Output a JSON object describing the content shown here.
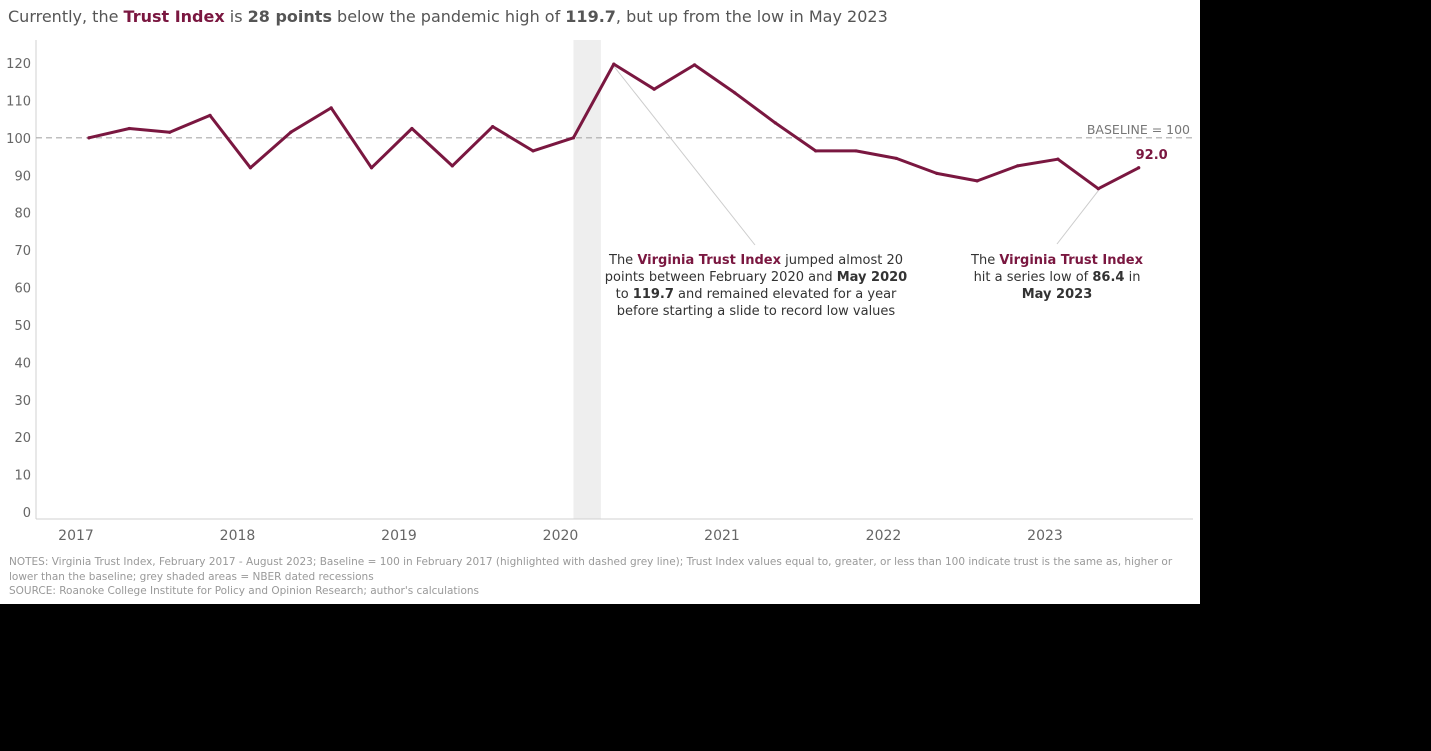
{
  "subtitle": {
    "t1": "Currently, the ",
    "t2": "Trust Index",
    "t3": " is ",
    "t4": "28 points",
    "t5": " below the pandemic high of ",
    "t6": "119.7",
    "t7": ", but up from the low in May 2023"
  },
  "chart_data": {
    "type": "line",
    "title": "Currently, the Trust Index is 28 points below the pandemic high of 119.7, but up from the low in May 2023",
    "xlabel": "",
    "ylabel": "",
    "ylim": [
      0,
      120
    ],
    "yticks": [
      0,
      10,
      20,
      30,
      40,
      50,
      60,
      70,
      80,
      90,
      100,
      110,
      120
    ],
    "xlim": [
      2017.0,
      2023.95
    ],
    "xticks": [
      {
        "label": "2017",
        "x": 2017.0
      },
      {
        "label": "2018",
        "x": 2018.0
      },
      {
        "label": "2019",
        "x": 2019.0
      },
      {
        "label": "2020",
        "x": 2020.0
      },
      {
        "label": "2021",
        "x": 2021.0
      },
      {
        "label": "2022",
        "x": 2022.0
      },
      {
        "label": "2023",
        "x": 2023.0
      }
    ],
    "baseline": {
      "value": 100,
      "label": "BASELINE = 100"
    },
    "recession": {
      "x0": 2020.08,
      "x1": 2020.25
    },
    "color": "#7a1740",
    "series": [
      {
        "name": "Virginia Trust Index",
        "x": [
          2017.08,
          2017.33,
          2017.58,
          2017.83,
          2018.08,
          2018.33,
          2018.58,
          2018.83,
          2019.08,
          2019.33,
          2019.58,
          2019.83,
          2020.08,
          2020.33,
          2020.58,
          2020.83,
          2021.08,
          2021.33,
          2021.58,
          2021.83,
          2022.08,
          2022.33,
          2022.58,
          2022.83,
          2023.08,
          2023.33,
          2023.58
        ],
        "values": [
          100.0,
          102.5,
          101.5,
          106.0,
          92.0,
          101.5,
          108.0,
          92.0,
          102.5,
          92.5,
          103.0,
          96.5,
          100.0,
          119.7,
          113.0,
          119.5,
          112.0,
          104.0,
          96.5,
          96.5,
          94.5,
          90.5,
          88.5,
          92.5,
          94.3,
          86.4,
          92.0
        ]
      }
    ],
    "end_label": "92.0",
    "annotations": [
      {
        "lines": [
          [
            {
              "t": "The "
            },
            {
              "t": "Virginia Trust Index",
              "s": "em"
            },
            {
              "t": " jumped almost 20"
            }
          ],
          [
            {
              "t": "points between February 2020 and "
            },
            {
              "t": "May 2020",
              "s": "b"
            }
          ],
          [
            {
              "t": "to "
            },
            {
              "t": "119.7",
              "s": "b"
            },
            {
              "t": " and remained elevated for a year"
            }
          ],
          [
            {
              "t": "before starting a slide to record low values"
            }
          ]
        ],
        "target": {
          "x": 2020.33,
          "y": 119.7
        }
      },
      {
        "lines": [
          [
            {
              "t": "The "
            },
            {
              "t": "Virginia Trust Index",
              "s": "em"
            }
          ],
          [
            {
              "t": "hit a series low of "
            },
            {
              "t": "86.4",
              "s": "b"
            },
            {
              "t": " in"
            }
          ],
          [
            {
              "t": "May 2023",
              "s": "b"
            }
          ]
        ],
        "target": {
          "x": 2023.33,
          "y": 86.4
        }
      }
    ]
  },
  "notes": {
    "line1": "NOTES: Virginia Trust Index, February 2017 - August 2023; Baseline = 100 in February 2017 (highlighted with dashed grey line); Trust Index values equal to, greater, or less than 100 indicate trust is the same as, higher or lower than the baseline; grey shaded areas = NBER dated recessions",
    "line2": "SOURCE: Roanoke College Institute for Policy and Opinion Research; author's calculations"
  }
}
